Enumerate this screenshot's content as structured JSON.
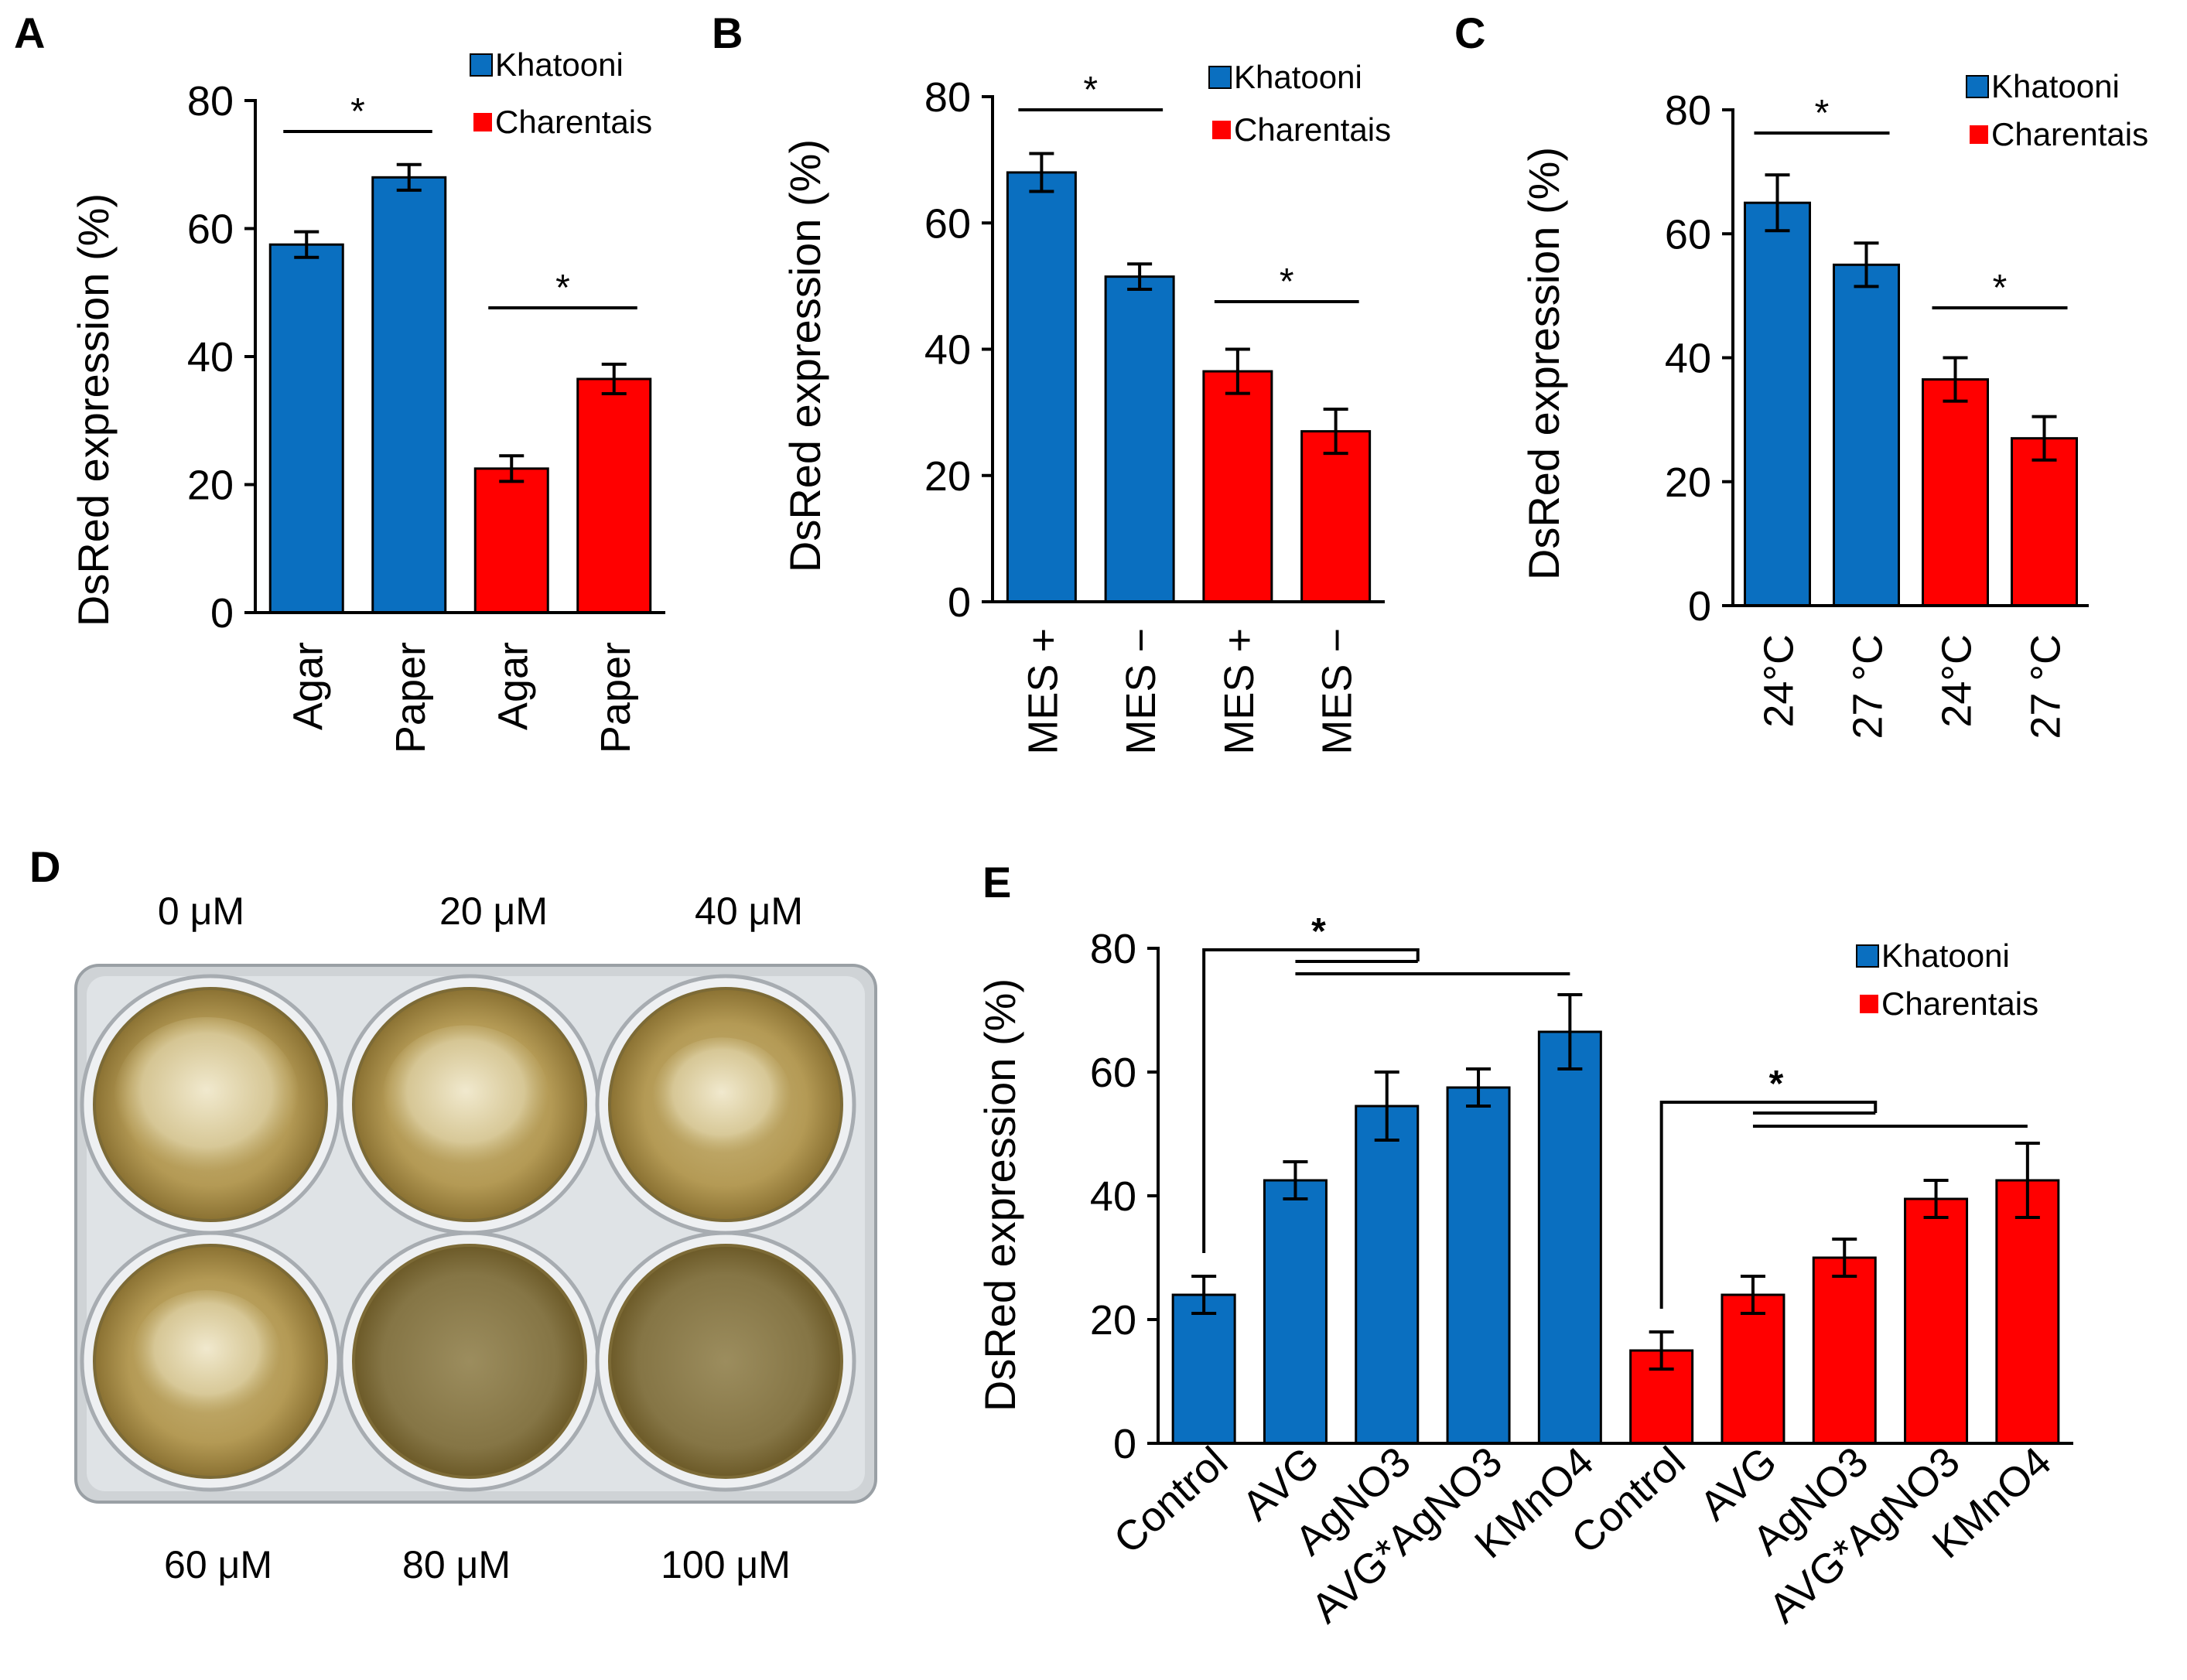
{
  "colors": {
    "khatooni": "#0a6fc0",
    "charentais": "#ff0000",
    "axis": "#000000"
  },
  "legend": {
    "series1": "Khatooni",
    "series2": "Charentais"
  },
  "significance_marker": "*",
  "chart_data": [
    {
      "panel": "A",
      "type": "bar",
      "ylabel": "DsRed expression (%)",
      "ylim": [
        0,
        80
      ],
      "yticks": [
        0,
        20,
        40,
        60,
        80
      ],
      "categories": [
        "Agar",
        "Paper",
        "Agar",
        "Paper"
      ],
      "series_of_category": [
        "Khatooni",
        "Khatooni",
        "Charentais",
        "Charentais"
      ],
      "values": [
        57.5,
        68,
        22.5,
        36.5
      ],
      "errors": [
        2,
        2,
        2,
        2.3
      ],
      "significance": [
        {
          "from": 0,
          "to": 1,
          "label": "*"
        },
        {
          "from": 2,
          "to": 3,
          "label": "*"
        }
      ]
    },
    {
      "panel": "B",
      "type": "bar",
      "ylabel": "DsRed expression (%)",
      "ylim": [
        0,
        80
      ],
      "yticks": [
        0,
        20,
        40,
        60,
        80
      ],
      "categories": [
        "MES +",
        "MES −",
        "MES +",
        "MES −"
      ],
      "series_of_category": [
        "Khatooni",
        "Khatooni",
        "Charentais",
        "Charentais"
      ],
      "values": [
        68,
        51.5,
        36.5,
        27
      ],
      "errors": [
        3,
        2,
        3.5,
        3.5
      ],
      "significance": [
        {
          "from": 0,
          "to": 1,
          "label": "*"
        },
        {
          "from": 2,
          "to": 3,
          "label": "*"
        }
      ]
    },
    {
      "panel": "C",
      "type": "bar",
      "ylabel": "DsRed expression (%)",
      "ylim": [
        0,
        80
      ],
      "yticks": [
        0,
        20,
        40,
        60,
        80
      ],
      "categories": [
        "24°C",
        "27 °C",
        "24°C",
        "27 °C"
      ],
      "series_of_category": [
        "Khatooni",
        "Khatooni",
        "Charentais",
        "Charentais"
      ],
      "values": [
        65,
        55,
        36.5,
        27
      ],
      "errors": [
        4.5,
        3.5,
        3.5,
        3.5
      ],
      "significance": [
        {
          "from": 0,
          "to": 1,
          "label": "*"
        },
        {
          "from": 2,
          "to": 3,
          "label": "*"
        }
      ]
    },
    {
      "panel": "E",
      "type": "bar",
      "ylabel": "DsRed expression (%)",
      "ylim": [
        0,
        80
      ],
      "yticks": [
        0,
        20,
        40,
        60,
        80
      ],
      "categories": [
        "Control",
        "AVG",
        "AgNO3",
        "AVG*AgNO3",
        "KMnO4",
        "Control",
        "AVG",
        "AgNO3",
        "AVG*AgNO3",
        "KMnO4"
      ],
      "series_of_category": [
        "Khatooni",
        "Khatooni",
        "Khatooni",
        "Khatooni",
        "Khatooni",
        "Charentais",
        "Charentais",
        "Charentais",
        "Charentais",
        "Charentais"
      ],
      "values": [
        24,
        42.5,
        54.5,
        57.5,
        66.5,
        15,
        24,
        30,
        39.5,
        42.5
      ],
      "errors": [
        3,
        3,
        5.5,
        3,
        6,
        3,
        3,
        3,
        3,
        6
      ],
      "significance": [
        {
          "control": 0,
          "targets": [
            1,
            2,
            3,
            4
          ],
          "label": "*"
        },
        {
          "control": 5,
          "targets": [
            6,
            7,
            8,
            9
          ],
          "label": "*"
        }
      ]
    }
  ],
  "panelD": {
    "label": "D",
    "concentrations_top": [
      "0 μM",
      "20 μM",
      "40 μM"
    ],
    "concentrations_bottom": [
      "60 μM",
      "80 μM",
      "100 μM"
    ],
    "well_growth": [
      1.0,
      0.9,
      0.75,
      0.8,
      0.1,
      0.05
    ]
  }
}
